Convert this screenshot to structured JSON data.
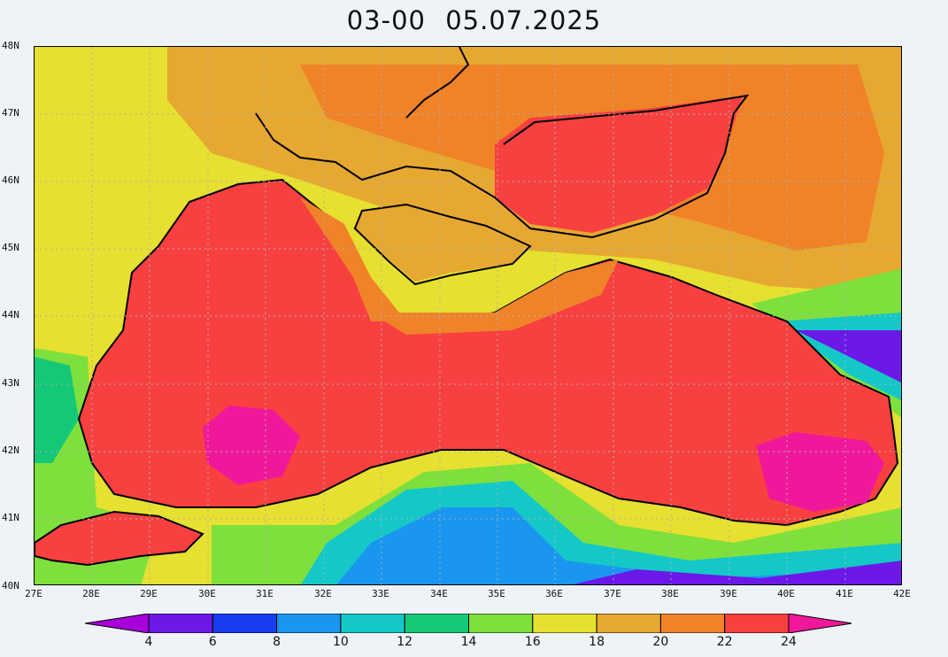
{
  "title": {
    "time": "03-00",
    "date": "05.07.2025"
  },
  "axes": {
    "lat_labels": [
      "48N",
      "47N",
      "46N",
      "45N",
      "44N",
      "43N",
      "42N",
      "41N",
      "40N"
    ],
    "lon_labels": [
      "27E",
      "28E",
      "29E",
      "30E",
      "31E",
      "32E",
      "33E",
      "34E",
      "35E",
      "36E",
      "37E",
      "38E",
      "39E",
      "40E",
      "41E",
      "42E"
    ]
  },
  "colorbar": {
    "labels": [
      "4",
      "6",
      "8",
      "10",
      "12",
      "14",
      "16",
      "18",
      "20",
      "22",
      "24"
    ],
    "colors": [
      "#a800d8",
      "#6b18e8",
      "#1a3cf0",
      "#1a96f0",
      "#14c8c8",
      "#14c878",
      "#7ee03c",
      "#e6e030",
      "#e6a830",
      "#f08228",
      "#f84040",
      "#f0189a"
    ]
  }
}
